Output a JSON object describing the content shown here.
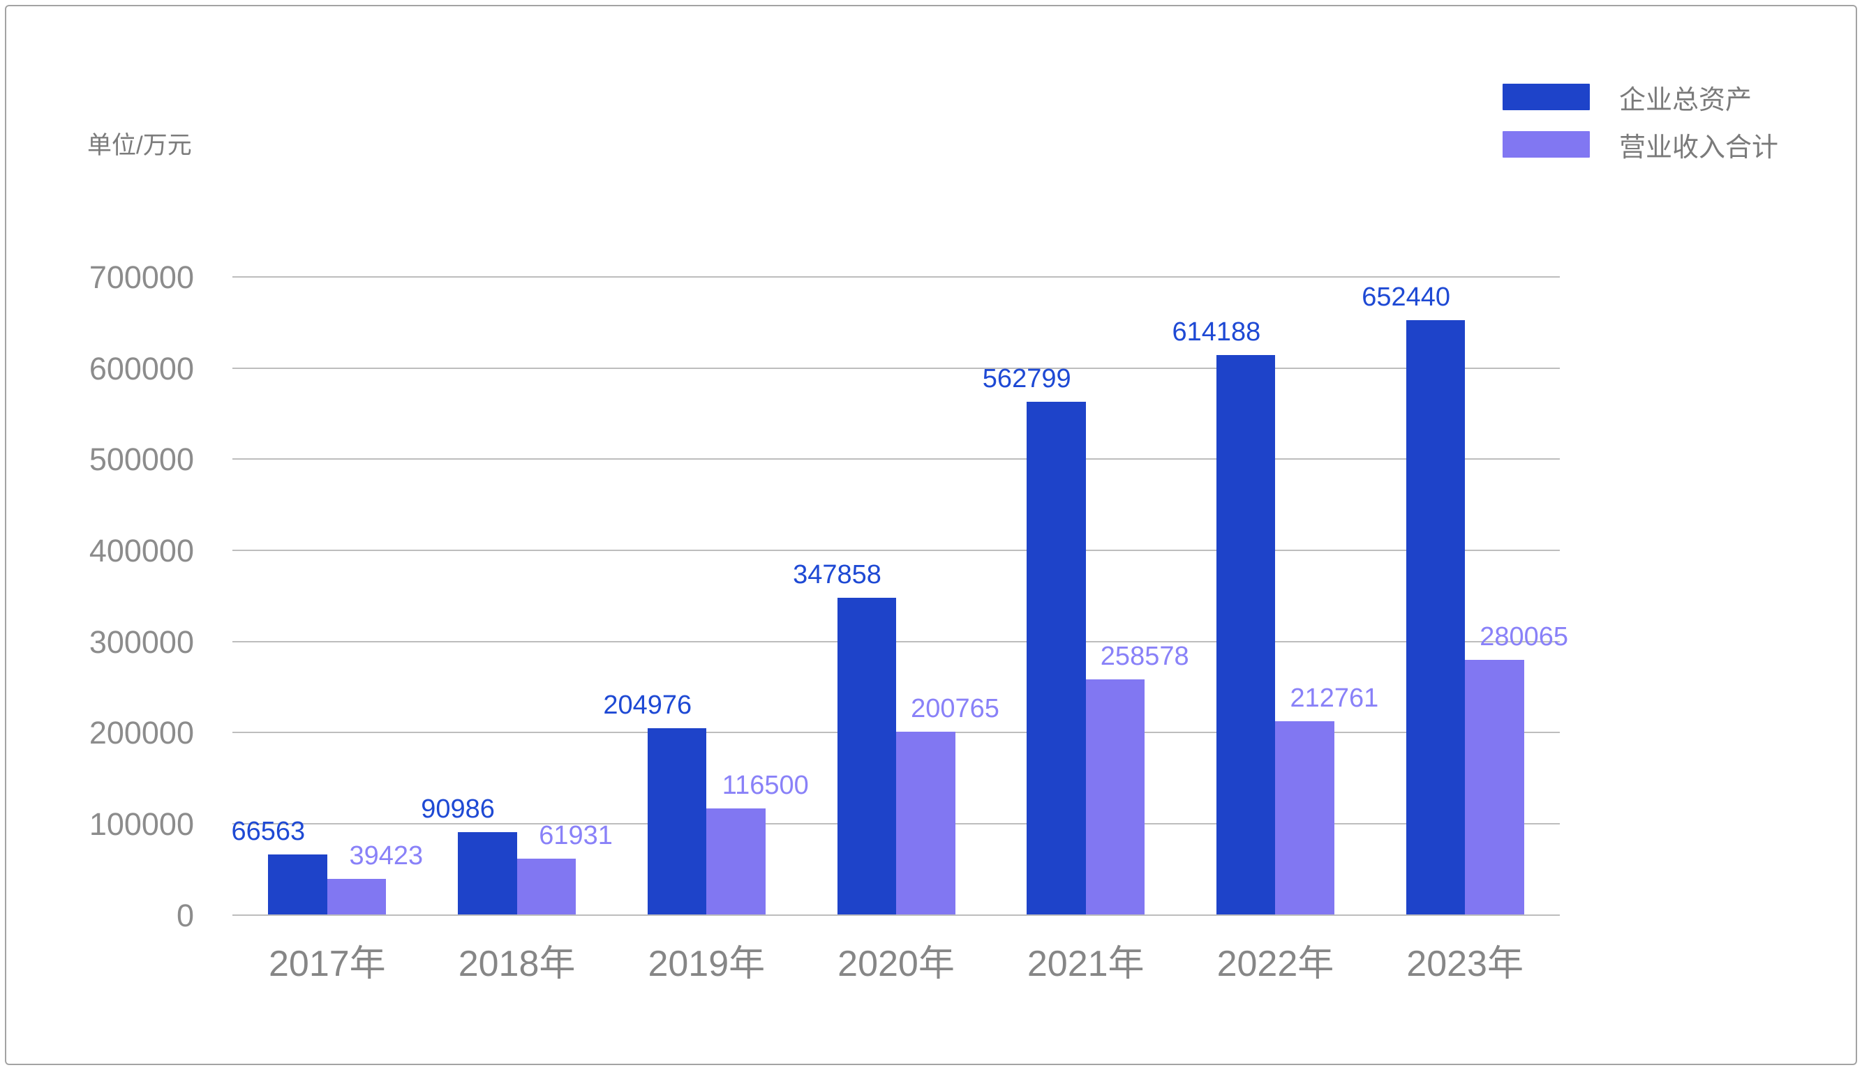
{
  "frame": {
    "border_color": "#a3a3a3"
  },
  "chart_data": {
    "type": "bar",
    "unit_label": "单位/万元",
    "categories": [
      "2017年",
      "2018年",
      "2019年",
      "2020年",
      "2021年",
      "2022年",
      "2023年"
    ],
    "series": [
      {
        "name": "企业总资产",
        "color": "#1e43c9",
        "label_color": "#1e49d4",
        "values": [
          66563,
          90986,
          204976,
          347858,
          562799,
          614188,
          652440
        ]
      },
      {
        "name": "营业收入合计",
        "color": "#8177f2",
        "label_color": "#8981f8",
        "values": [
          39423,
          61931,
          116500,
          200765,
          258578,
          212761,
          280065
        ]
      }
    ],
    "ylim": [
      0,
      700000
    ],
    "yticks": [
      0,
      100000,
      200000,
      300000,
      400000,
      500000,
      600000,
      700000
    ],
    "grid": true,
    "legend_position": "top-right",
    "axis_text_color": "#8c8c8c",
    "xaxis_text_color": "#868686",
    "gridline_color": "#bdbdbd",
    "legend_text_color": "#7a7a7a"
  }
}
